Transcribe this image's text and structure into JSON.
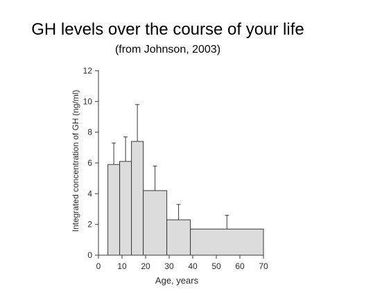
{
  "header": {
    "title": "GH levels over the course of your life",
    "subtitle": "(from Johnson, 2003)"
  },
  "colors": {
    "bar_fill": "#dcdcdc",
    "bar_stroke": "#3a3a3a",
    "axis": "#3a3a3a",
    "text": "#2b2b2b"
  },
  "chart_data": {
    "type": "bar",
    "title": "GH levels over the course of your life",
    "subtitle": "(from Johnson, 2003)",
    "xlabel": "Age, years",
    "ylabel": "Integrated concentration of GH (ng/ml)",
    "xlim": [
      0,
      70
    ],
    "ylim": [
      0,
      12
    ],
    "xticks": [
      0,
      10,
      20,
      30,
      40,
      50,
      60,
      70
    ],
    "yticks": [
      0,
      2,
      4,
      6,
      8,
      10,
      12
    ],
    "grid": false,
    "legend": "none",
    "bins": [
      {
        "x_start": 4,
        "x_end": 9,
        "value": 5.9,
        "error_upper": 7.3
      },
      {
        "x_start": 9,
        "x_end": 14,
        "value": 6.1,
        "error_upper": 7.7
      },
      {
        "x_start": 14,
        "x_end": 19,
        "value": 7.4,
        "error_upper": 9.8
      },
      {
        "x_start": 19,
        "x_end": 29,
        "value": 4.2,
        "error_upper": 5.8
      },
      {
        "x_start": 29,
        "x_end": 39,
        "value": 2.3,
        "error_upper": 3.3
      },
      {
        "x_start": 39,
        "x_end": 70,
        "value": 1.7,
        "error_upper": 2.6
      }
    ]
  }
}
